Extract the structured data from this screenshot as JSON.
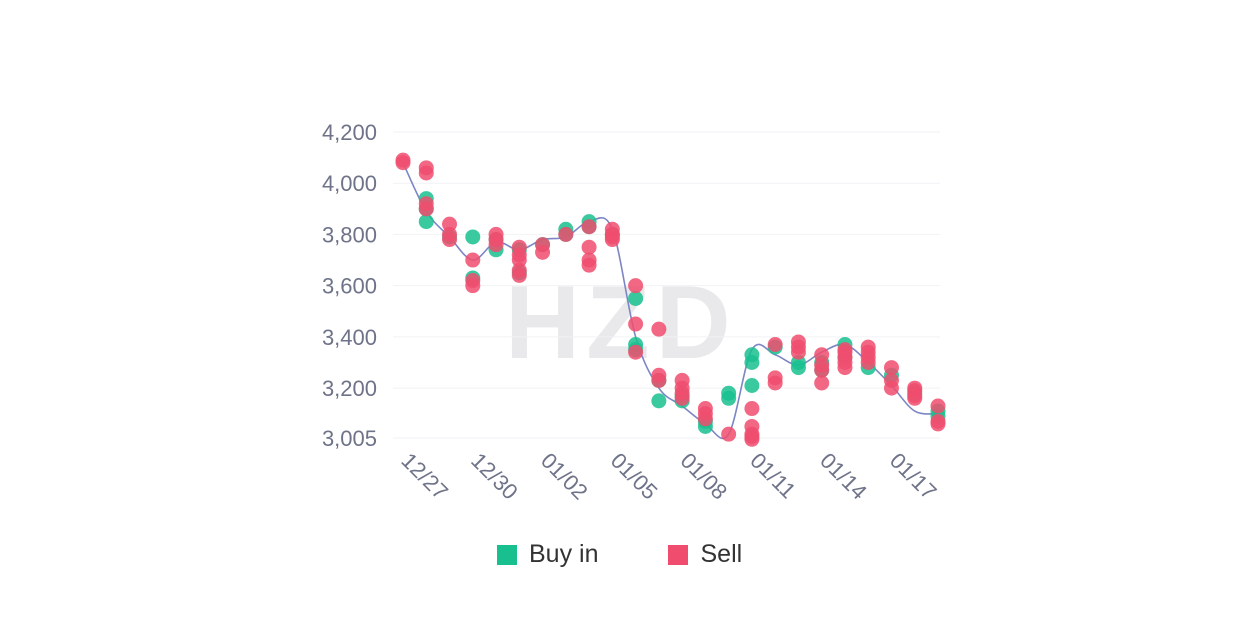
{
  "colors": {
    "buy": "#19c08f",
    "sell": "#f04d6e",
    "line": "#7c86c4",
    "grid": "#f1f2f5",
    "tick_text": "#6f7389"
  },
  "watermark": "HZD",
  "legend": {
    "buy_label": "Buy in",
    "sell_label": "Sell"
  },
  "chart_data": {
    "type": "scatter",
    "x_unit": "day",
    "x_tick_labels": [
      "12/27",
      "12/30",
      "01/02",
      "01/05",
      "01/08",
      "01/11",
      "01/14",
      "01/17"
    ],
    "x_tick_days": [
      0,
      3,
      6,
      9,
      12,
      15,
      18,
      21
    ],
    "x_range": [
      0,
      23
    ],
    "y_tick_labels": [
      "4,200",
      "4,000",
      "3,800",
      "3,600",
      "3,400",
      "3,200",
      "3,005"
    ],
    "y_tick_values": [
      4200,
      4000,
      3800,
      3600,
      3400,
      3200,
      3005
    ],
    "ylim": [
      3005,
      4200
    ],
    "grid": true,
    "legend_position": "bottom-center",
    "line": {
      "x": [
        0,
        1,
        2,
        3,
        4,
        5,
        6,
        7,
        8,
        9,
        10,
        11,
        12,
        13,
        14,
        15,
        16,
        17,
        18,
        19,
        20,
        21,
        22,
        23
      ],
      "y": [
        4080,
        3890,
        3790,
        3700,
        3770,
        3740,
        3780,
        3790,
        3850,
        3820,
        3400,
        3200,
        3130,
        3060,
        3020,
        3350,
        3330,
        3290,
        3340,
        3370,
        3300,
        3210,
        3110,
        3100
      ]
    },
    "series": [
      {
        "name": "Buy in",
        "x": [
          1,
          1,
          1,
          2,
          3,
          3,
          4,
          4,
          5,
          5,
          6,
          7,
          7,
          8,
          8,
          9,
          10,
          10,
          10,
          11,
          11,
          12,
          12,
          13,
          13,
          14,
          14,
          15,
          15,
          15,
          16,
          17,
          17,
          18,
          18,
          19,
          19,
          20,
          21,
          22,
          23,
          23
        ],
        "y": [
          3940,
          3900,
          3850,
          3790,
          3790,
          3630,
          3780,
          3740,
          3740,
          3650,
          3760,
          3820,
          3800,
          3850,
          3830,
          3800,
          3550,
          3370,
          3350,
          3230,
          3150,
          3170,
          3150,
          3070,
          3050,
          3180,
          3160,
          3330,
          3300,
          3210,
          3360,
          3300,
          3280,
          3300,
          3270,
          3370,
          3320,
          3280,
          3250,
          3180,
          3110,
          3090
        ]
      },
      {
        "name": "Sell",
        "x": [
          0,
          0,
          1,
          1,
          1,
          1,
          2,
          2,
          2,
          3,
          3,
          3,
          4,
          4,
          4,
          5,
          5,
          5,
          5,
          5,
          6,
          6,
          7,
          8,
          8,
          8,
          8,
          9,
          9,
          9,
          9,
          10,
          10,
          10,
          11,
          11,
          11,
          12,
          12,
          12,
          12,
          13,
          13,
          13,
          14,
          15,
          15,
          15,
          15,
          15,
          16,
          16,
          16,
          17,
          17,
          17,
          18,
          18,
          18,
          18,
          19,
          19,
          19,
          19,
          19,
          20,
          20,
          20,
          20,
          21,
          21,
          21,
          22,
          22,
          22,
          22,
          23,
          23,
          23
        ],
        "y": [
          4090,
          4080,
          4060,
          4040,
          3920,
          3900,
          3840,
          3800,
          3780,
          3700,
          3620,
          3600,
          3800,
          3780,
          3760,
          3750,
          3720,
          3700,
          3660,
          3640,
          3760,
          3730,
          3800,
          3830,
          3750,
          3700,
          3680,
          3820,
          3800,
          3780,
          3790,
          3600,
          3450,
          3340,
          3430,
          3250,
          3230,
          3230,
          3200,
          3180,
          3160,
          3120,
          3100,
          3080,
          3020,
          3120,
          3050,
          3020,
          3000,
          3010,
          3370,
          3240,
          3220,
          3380,
          3360,
          3340,
          3330,
          3290,
          3270,
          3220,
          3340,
          3320,
          3300,
          3280,
          3350,
          3360,
          3340,
          3320,
          3300,
          3280,
          3230,
          3200,
          3200,
          3190,
          3170,
          3160,
          3130,
          3070,
          3060
        ]
      }
    ]
  }
}
